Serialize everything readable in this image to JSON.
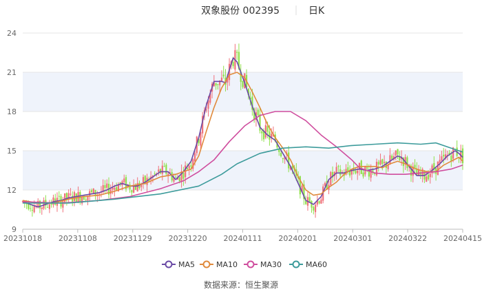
{
  "header": {
    "title": "双象股份 002395",
    "period": "日K"
  },
  "source": "数据来源：恒生聚源",
  "colors": {
    "up": "#f0707a",
    "down": "#8fe04a",
    "band": "#eff3fb",
    "grid": "#e6e6e6",
    "axis": "#bbbbbb",
    "text": "#666666",
    "title": "#333333"
  },
  "chart_data": {
    "type": "line",
    "ylim": [
      9,
      24
    ],
    "yticks": [
      9,
      12,
      15,
      18,
      21,
      24
    ],
    "xticks": [
      "20231018",
      "20231108",
      "20231129",
      "20231220",
      "20240111",
      "20240201",
      "20240301",
      "20240322",
      "20240415"
    ],
    "legend_position": "bottom",
    "series": [
      {
        "name": "MA5",
        "color": "#6a4aa5",
        "points": [
          [
            0,
            11.1
          ],
          [
            4,
            10.9
          ],
          [
            8,
            10.7
          ],
          [
            12,
            10.9
          ],
          [
            16,
            11.1
          ],
          [
            20,
            11.2
          ],
          [
            24,
            11.4
          ],
          [
            28,
            11.5
          ],
          [
            32,
            11.6
          ],
          [
            36,
            11.7
          ],
          [
            40,
            11.8
          ],
          [
            44,
            12.0
          ],
          [
            48,
            12.3
          ],
          [
            52,
            12.5
          ],
          [
            56,
            12.3
          ],
          [
            60,
            12.3
          ],
          [
            64,
            12.6
          ],
          [
            68,
            13.0
          ],
          [
            72,
            13.4
          ],
          [
            76,
            13.4
          ],
          [
            80,
            12.8
          ],
          [
            84,
            13.4
          ],
          [
            88,
            14.2
          ],
          [
            92,
            16.0
          ],
          [
            96,
            18.5
          ],
          [
            100,
            20.3
          ],
          [
            104,
            20.3
          ],
          [
            106,
            20.2
          ],
          [
            108,
            21.2
          ],
          [
            110,
            22.1
          ],
          [
            112,
            21.8
          ],
          [
            114,
            21.0
          ],
          [
            116,
            20.2
          ],
          [
            120,
            18.4
          ],
          [
            124,
            16.8
          ],
          [
            128,
            16.2
          ],
          [
            132,
            15.8
          ],
          [
            136,
            14.8
          ],
          [
            140,
            13.8
          ],
          [
            144,
            12.5
          ],
          [
            148,
            11.2
          ],
          [
            152,
            10.9
          ],
          [
            156,
            11.5
          ],
          [
            160,
            12.8
          ],
          [
            164,
            13.3
          ],
          [
            168,
            13.3
          ],
          [
            172,
            13.5
          ],
          [
            176,
            13.6
          ],
          [
            180,
            13.5
          ],
          [
            184,
            13.6
          ],
          [
            188,
            13.8
          ],
          [
            192,
            14.2
          ],
          [
            196,
            14.6
          ],
          [
            198,
            14.5
          ],
          [
            202,
            13.8
          ],
          [
            206,
            13.1
          ],
          [
            210,
            13.1
          ],
          [
            214,
            13.5
          ],
          [
            218,
            14.0
          ],
          [
            222,
            14.6
          ],
          [
            226,
            15.0
          ],
          [
            228,
            14.8
          ],
          [
            230,
            14.5
          ]
        ]
      },
      {
        "name": "MA10",
        "color": "#e08a3c",
        "points": [
          [
            0,
            11.2
          ],
          [
            8,
            11.0
          ],
          [
            16,
            11.0
          ],
          [
            24,
            11.3
          ],
          [
            32,
            11.5
          ],
          [
            40,
            11.6
          ],
          [
            48,
            11.9
          ],
          [
            56,
            12.3
          ],
          [
            64,
            12.5
          ],
          [
            72,
            13.0
          ],
          [
            80,
            13.2
          ],
          [
            88,
            13.6
          ],
          [
            92,
            14.6
          ],
          [
            96,
            16.5
          ],
          [
            100,
            18.3
          ],
          [
            104,
            19.8
          ],
          [
            108,
            20.8
          ],
          [
            112,
            21.0
          ],
          [
            116,
            20.6
          ],
          [
            120,
            19.5
          ],
          [
            124,
            18.3
          ],
          [
            128,
            17.0
          ],
          [
            132,
            16.0
          ],
          [
            136,
            15.2
          ],
          [
            140,
            14.3
          ],
          [
            144,
            13.0
          ],
          [
            148,
            12.0
          ],
          [
            152,
            11.6
          ],
          [
            156,
            11.7
          ],
          [
            160,
            12.2
          ],
          [
            164,
            12.6
          ],
          [
            168,
            13.2
          ],
          [
            172,
            13.6
          ],
          [
            176,
            13.8
          ],
          [
            180,
            13.8
          ],
          [
            184,
            13.8
          ],
          [
            188,
            13.7
          ],
          [
            192,
            14.0
          ],
          [
            196,
            14.2
          ],
          [
            200,
            14.0
          ],
          [
            204,
            13.7
          ],
          [
            208,
            13.5
          ],
          [
            212,
            13.4
          ],
          [
            216,
            13.4
          ],
          [
            220,
            13.9
          ],
          [
            224,
            14.2
          ],
          [
            228,
            14.5
          ],
          [
            230,
            14.2
          ]
        ]
      },
      {
        "name": "MA30",
        "color": "#cf4d9e",
        "points": [
          [
            0,
            11.1
          ],
          [
            20,
            11.0
          ],
          [
            40,
            11.2
          ],
          [
            56,
            11.5
          ],
          [
            72,
            12.1
          ],
          [
            84,
            12.7
          ],
          [
            92,
            13.4
          ],
          [
            100,
            14.3
          ],
          [
            108,
            15.7
          ],
          [
            116,
            16.9
          ],
          [
            124,
            17.7
          ],
          [
            132,
            18.0
          ],
          [
            140,
            18.0
          ],
          [
            148,
            17.3
          ],
          [
            156,
            16.2
          ],
          [
            164,
            15.3
          ],
          [
            172,
            14.3
          ],
          [
            176,
            13.7
          ],
          [
            184,
            13.3
          ],
          [
            192,
            13.2
          ],
          [
            200,
            13.2
          ],
          [
            208,
            13.3
          ],
          [
            216,
            13.4
          ],
          [
            224,
            13.6
          ],
          [
            230,
            13.9
          ]
        ]
      },
      {
        "name": "MA60",
        "color": "#3c9b9b",
        "points": [
          [
            0,
            11.0
          ],
          [
            24,
            11.0
          ],
          [
            48,
            11.3
          ],
          [
            72,
            11.7
          ],
          [
            92,
            12.3
          ],
          [
            104,
            13.2
          ],
          [
            112,
            14.0
          ],
          [
            124,
            14.8
          ],
          [
            136,
            15.2
          ],
          [
            148,
            15.3
          ],
          [
            160,
            15.2
          ],
          [
            172,
            15.4
          ],
          [
            184,
            15.5
          ],
          [
            196,
            15.6
          ],
          [
            208,
            15.5
          ],
          [
            216,
            15.6
          ],
          [
            224,
            15.2
          ],
          [
            230,
            14.9
          ]
        ]
      }
    ]
  }
}
